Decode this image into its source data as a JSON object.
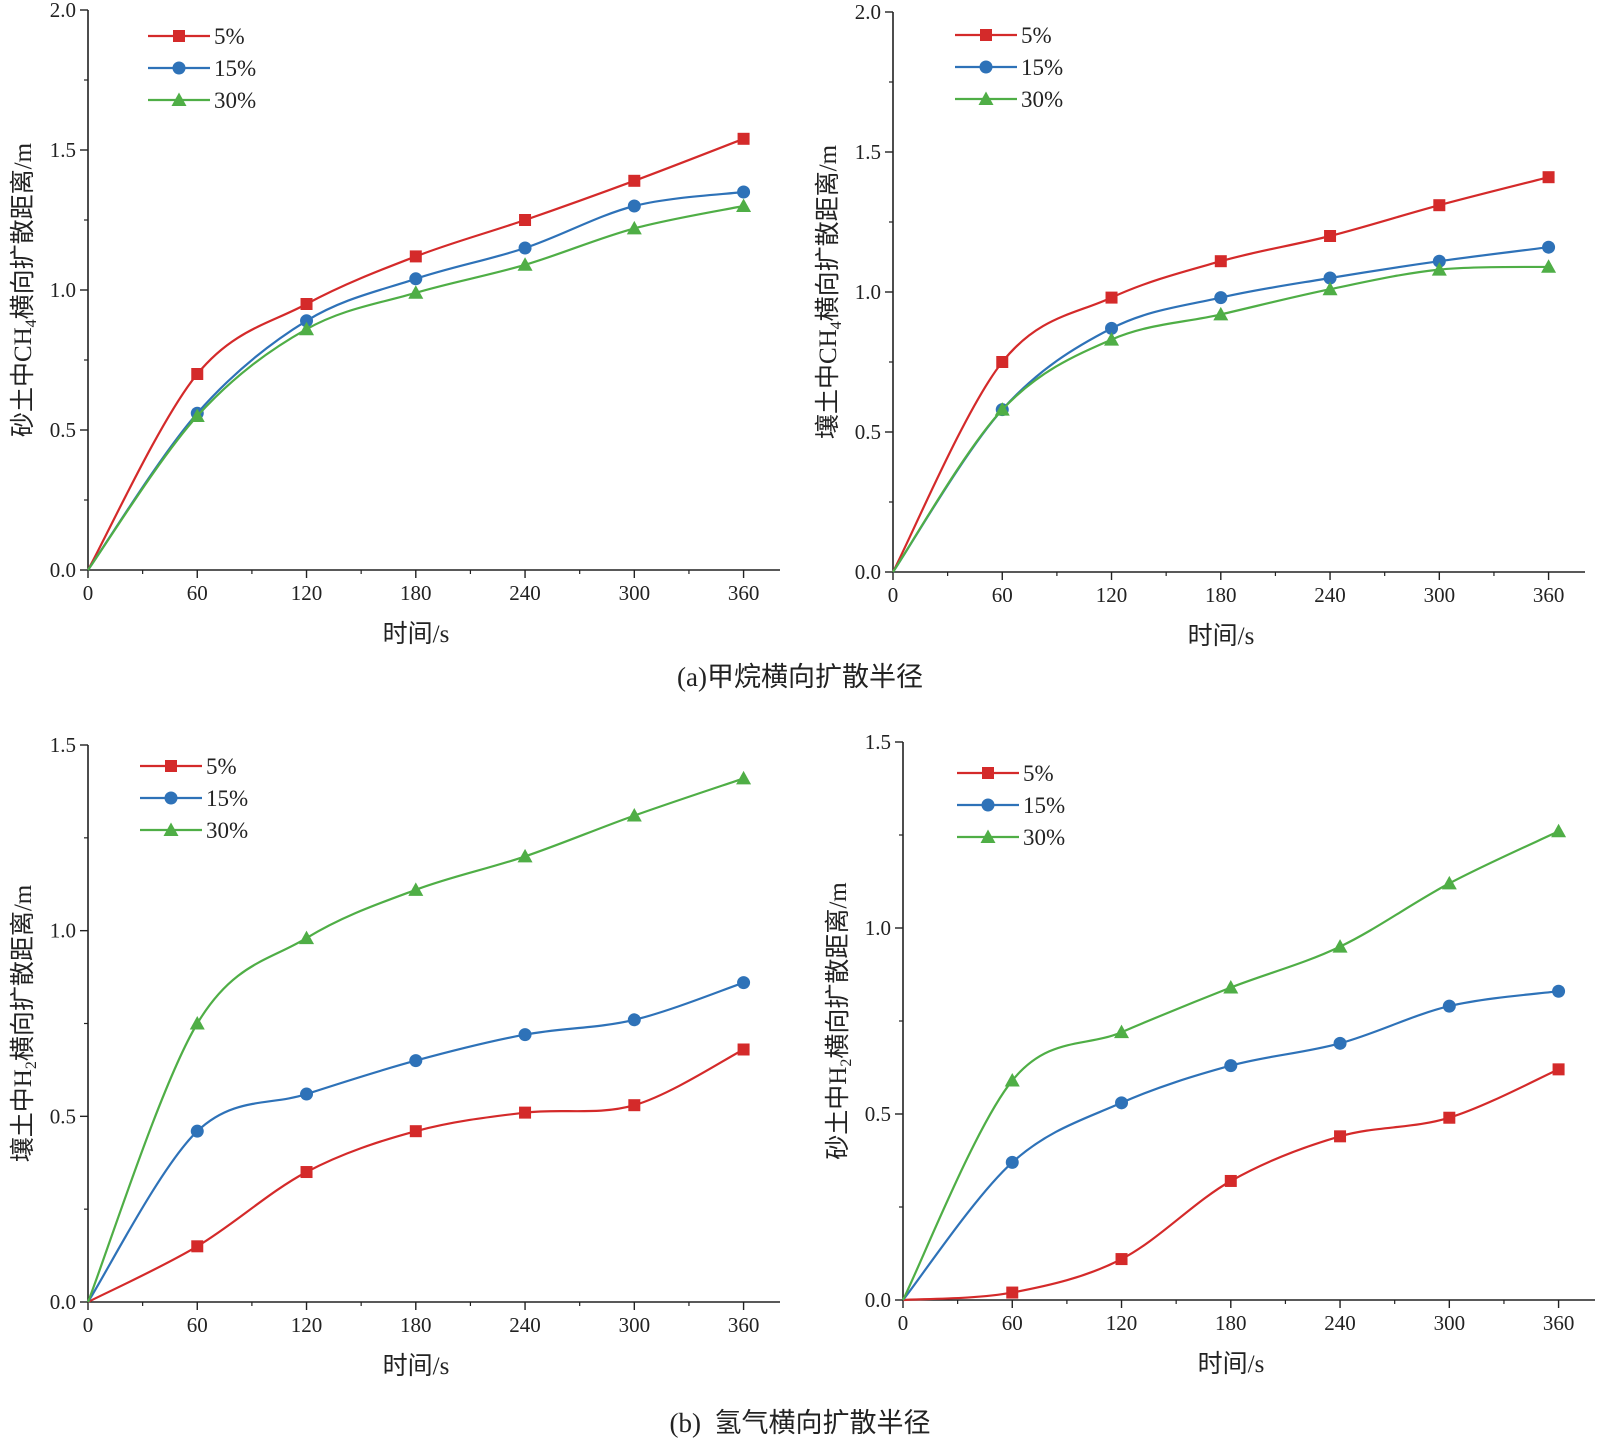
{
  "figure": {
    "caption_a": "(a)甲烷横向扩散半径",
    "caption_b": "(b)  氢气横向扩散半径"
  },
  "colors": {
    "s5": "#d42a2a",
    "s15": "#2e72b8",
    "s30": "#4fae46",
    "axis": "#222222"
  },
  "chart_data": [
    {
      "type": "line",
      "panel": "a-left",
      "xlabel": "时间/s",
      "ylabel_parts": [
        "砂土中CH",
        "4",
        "横向扩散距离/m"
      ],
      "xlim": [
        0,
        380
      ],
      "ylim": [
        0,
        2.0
      ],
      "xticks": [
        "0",
        "60",
        "120",
        "180",
        "240",
        "300",
        "360"
      ],
      "yticks": [
        "0.0",
        "0.5",
        "1.0",
        "1.5",
        "2.0"
      ],
      "x": [
        0,
        60,
        120,
        180,
        240,
        300,
        360
      ],
      "series": [
        {
          "name": "5%",
          "marker": "square",
          "color": "#d42a2a",
          "values": [
            0,
            0.7,
            0.95,
            1.12,
            1.25,
            1.39,
            1.54
          ]
        },
        {
          "name": "15%",
          "marker": "circle",
          "color": "#2e72b8",
          "values": [
            0,
            0.56,
            0.89,
            1.04,
            1.15,
            1.3,
            1.35
          ]
        },
        {
          "name": "30%",
          "marker": "triangle",
          "color": "#4fae46",
          "values": [
            0,
            0.55,
            0.86,
            0.99,
            1.09,
            1.22,
            1.3
          ]
        }
      ]
    },
    {
      "type": "line",
      "panel": "a-right",
      "xlabel": "时间/s",
      "ylabel_parts": [
        "壤土中CH",
        "4",
        "横向扩散距离/m"
      ],
      "xlim": [
        0,
        380
      ],
      "ylim": [
        0,
        2.0
      ],
      "xticks": [
        "0",
        "60",
        "120",
        "180",
        "240",
        "300",
        "360"
      ],
      "yticks": [
        "0.0",
        "0.5",
        "1.0",
        "1.5",
        "2.0"
      ],
      "x": [
        0,
        60,
        120,
        180,
        240,
        300,
        360
      ],
      "series": [
        {
          "name": "5%",
          "marker": "square",
          "color": "#d42a2a",
          "values": [
            0,
            0.75,
            0.98,
            1.11,
            1.2,
            1.31,
            1.41
          ]
        },
        {
          "name": "15%",
          "marker": "circle",
          "color": "#2e72b8",
          "values": [
            0,
            0.58,
            0.87,
            0.98,
            1.05,
            1.11,
            1.16
          ]
        },
        {
          "name": "30%",
          "marker": "triangle",
          "color": "#4fae46",
          "values": [
            0,
            0.58,
            0.83,
            0.92,
            1.01,
            1.08,
            1.09
          ]
        }
      ]
    },
    {
      "type": "line",
      "panel": "b-left",
      "xlabel": "时间/s",
      "ylabel_parts": [
        "壤土中H",
        "2",
        "横向扩散距离/m"
      ],
      "xlim": [
        0,
        380
      ],
      "ylim": [
        0,
        1.5
      ],
      "xticks": [
        "0",
        "60",
        "120",
        "180",
        "240",
        "300",
        "360"
      ],
      "yticks": [
        "0.0",
        "0.5",
        "1.0",
        "1.5"
      ],
      "x": [
        0,
        60,
        120,
        180,
        240,
        300,
        360
      ],
      "series": [
        {
          "name": "5%",
          "marker": "square",
          "color": "#d42a2a",
          "values": [
            0,
            0.15,
            0.35,
            0.46,
            0.51,
            0.53,
            0.68
          ]
        },
        {
          "name": "15%",
          "marker": "circle",
          "color": "#2e72b8",
          "values": [
            0,
            0.46,
            0.56,
            0.65,
            0.72,
            0.76,
            0.86
          ]
        },
        {
          "name": "30%",
          "marker": "triangle",
          "color": "#4fae46",
          "values": [
            0,
            0.75,
            0.98,
            1.11,
            1.2,
            1.31,
            1.41
          ]
        }
      ]
    },
    {
      "type": "line",
      "panel": "b-right",
      "xlabel": "时间/s",
      "ylabel_parts": [
        "砂土中H",
        "2",
        "横向扩散距离/m"
      ],
      "xlim": [
        0,
        380
      ],
      "ylim": [
        0,
        1.5
      ],
      "xticks": [
        "0",
        "60",
        "120",
        "180",
        "240",
        "300",
        "360"
      ],
      "yticks": [
        "0.0",
        "0.5",
        "1.0",
        "1.5"
      ],
      "x": [
        0,
        60,
        120,
        180,
        240,
        300,
        360
      ],
      "series": [
        {
          "name": "5%",
          "marker": "square",
          "color": "#d42a2a",
          "values": [
            0,
            0.02,
            0.11,
            0.32,
            0.44,
            0.49,
            0.62
          ]
        },
        {
          "name": "15%",
          "marker": "circle",
          "color": "#2e72b8",
          "values": [
            0,
            0.37,
            0.53,
            0.63,
            0.69,
            0.79,
            0.83
          ]
        },
        {
          "name": "30%",
          "marker": "triangle",
          "color": "#4fae46",
          "values": [
            0,
            0.59,
            0.72,
            0.84,
            0.95,
            1.12,
            1.26
          ]
        }
      ]
    }
  ]
}
